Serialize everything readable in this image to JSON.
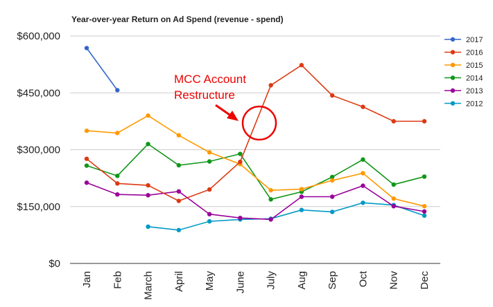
{
  "chart_data": {
    "type": "line",
    "title": "Year-over-year Return on Ad Spend (revenue - spend)",
    "xlabel": "",
    "ylabel": "",
    "categories": [
      "Jan",
      "Feb",
      "March",
      "April",
      "May",
      "June",
      "July",
      "Aug",
      "Sep",
      "Oct",
      "Nov",
      "Dec"
    ],
    "ylim": [
      0,
      600000
    ],
    "yticks": [
      0,
      150000,
      300000,
      450000,
      600000
    ],
    "ytick_labels": [
      "$0",
      "$150,000",
      "$300,000",
      "$450,000",
      "$600,000"
    ],
    "grid": true,
    "legend_position": "right",
    "series": [
      {
        "name": "2017",
        "color": "#3366cc",
        "values": [
          568000,
          457000,
          null,
          null,
          null,
          null,
          null,
          null,
          null,
          null,
          null,
          null
        ]
      },
      {
        "name": "2016",
        "color": "#dc3912",
        "values": [
          276000,
          211000,
          206000,
          165000,
          195000,
          268000,
          470000,
          523000,
          443000,
          413000,
          375000,
          375000
        ]
      },
      {
        "name": "2015",
        "color": "#ff9900",
        "values": [
          350000,
          344000,
          390000,
          338000,
          293000,
          262000,
          193000,
          196000,
          219000,
          238000,
          171000,
          151000
        ]
      },
      {
        "name": "2014",
        "color": "#109618",
        "values": [
          258000,
          231000,
          315000,
          259000,
          269000,
          289000,
          169000,
          189000,
          228000,
          274000,
          208000,
          229000
        ]
      },
      {
        "name": "2013",
        "color": "#990099",
        "values": [
          213000,
          182000,
          180000,
          190000,
          130000,
          120000,
          116000,
          176000,
          176000,
          205000,
          151000,
          137000
        ]
      },
      {
        "name": "2012",
        "color": "#0099c6",
        "values": [
          null,
          null,
          97000,
          88000,
          111000,
          116000,
          118000,
          141000,
          136000,
          160000,
          154000,
          126000
        ]
      }
    ],
    "annotation": {
      "lines": [
        "MCC Account",
        "Restructure"
      ],
      "color": "#ee0000"
    }
  }
}
